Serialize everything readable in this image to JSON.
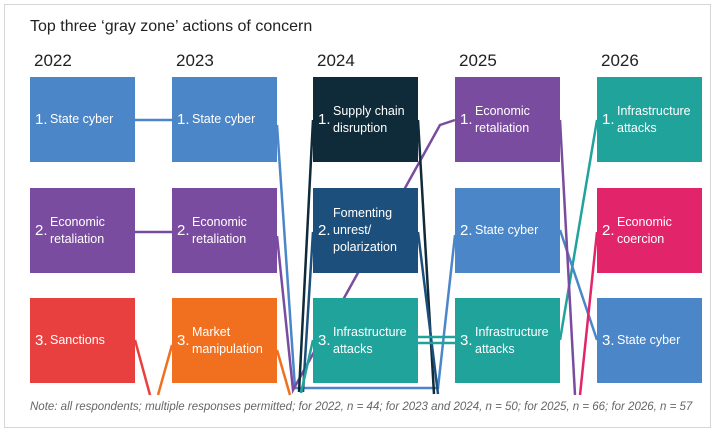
{
  "title": "Top three ‘gray zone’ actions of concern",
  "columns": [
    {
      "year": "2022",
      "items": [
        {
          "rank": "1.",
          "label": "State cyber",
          "color": "#4a86c8"
        },
        {
          "rank": "2.",
          "label": "Economic retaliation",
          "color": "#7a4c9f"
        },
        {
          "rank": "3.",
          "label": "Sanctions",
          "color": "#e8403f"
        }
      ]
    },
    {
      "year": "2023",
      "items": [
        {
          "rank": "1.",
          "label": "State cyber",
          "color": "#4a86c8"
        },
        {
          "rank": "2.",
          "label": "Economic retaliation",
          "color": "#7a4c9f"
        },
        {
          "rank": "3.",
          "label": "Market manipulation",
          "color": "#f0701f"
        }
      ]
    },
    {
      "year": "2024",
      "items": [
        {
          "rank": "1.",
          "label": "Supply chain disruption",
          "color": "#0f2a38"
        },
        {
          "rank": "2.",
          "label": "Fomenting unrest/ polarization",
          "color": "#1c4f7b"
        },
        {
          "rank": "3.",
          "label": "Infrastructure attacks",
          "color": "#1fa39b"
        }
      ]
    },
    {
      "year": "2025",
      "items": [
        {
          "rank": "1.",
          "label": "Economic retaliation",
          "color": "#7a4c9f"
        },
        {
          "rank": "2.",
          "label": "State cyber",
          "color": "#4a86c8"
        },
        {
          "rank": "3.",
          "label": "Infrastructure attacks",
          "color": "#1fa39b"
        }
      ]
    },
    {
      "year": "2026",
      "items": [
        {
          "rank": "1.",
          "label": "Infrastructure attacks",
          "color": "#1fa39b"
        },
        {
          "rank": "2.",
          "label": "Economic coercion",
          "color": "#e2256a"
        },
        {
          "rank": "3.",
          "label": "State cyber",
          "color": "#4a86c8"
        }
      ]
    }
  ],
  "note": "Note: all respondents; multiple responses permitted; for 2022, n = 44; for 2023 and 2024, n = 50; for 2025, n = 66; for 2026, n = 57"
}
